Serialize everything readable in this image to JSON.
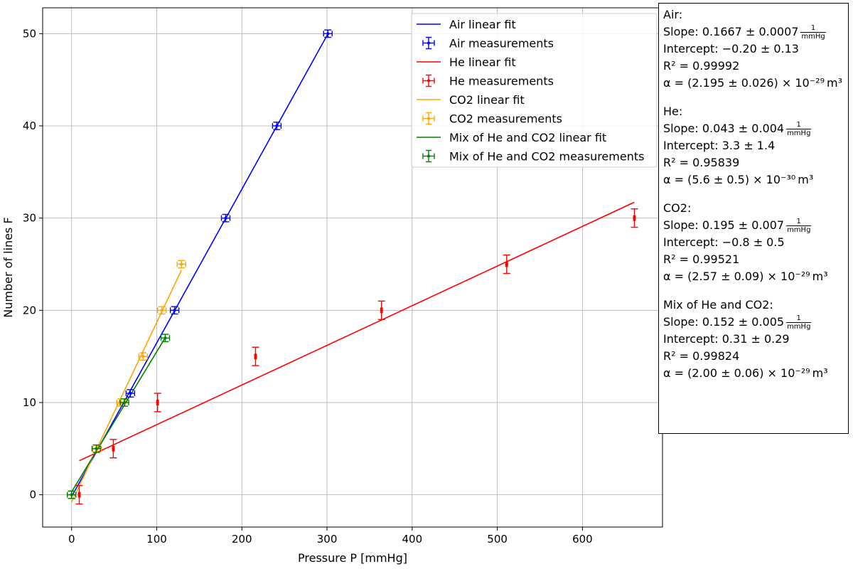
{
  "chart_data": {
    "type": "scatter",
    "xlabel": "Pressure P [mmHg]",
    "ylabel": "Number of lines F",
    "xlim": [
      -34,
      694
    ],
    "ylim": [
      -3.5,
      52.8
    ],
    "xticks": [
      "0",
      "100",
      "200",
      "300",
      "400",
      "500",
      "600"
    ],
    "xtick_values": [
      0,
      100,
      200,
      300,
      400,
      500,
      600
    ],
    "yticks": [
      "0",
      "10",
      "20",
      "30",
      "40",
      "50"
    ],
    "ytick_values": [
      0,
      10,
      20,
      30,
      40,
      50
    ],
    "grid": true,
    "legend_position": "top-right",
    "series": [
      {
        "key": "air",
        "color": "#0000ff",
        "fit_name": "Air linear fit",
        "meas_name": "Air measurements",
        "points": [
          [
            0,
            0
          ],
          [
            69,
            11
          ],
          [
            121,
            20
          ],
          [
            181,
            30
          ],
          [
            241,
            40
          ],
          [
            301,
            50
          ]
        ],
        "xerr": 5,
        "yerr": 0.4,
        "fit": {
          "slope": 0.1667,
          "intercept": -0.2,
          "x_range": [
            0,
            301
          ]
        }
      },
      {
        "key": "he",
        "color": "#ff0000",
        "fit_name": "He linear fit",
        "meas_name": "He measurements",
        "points": [
          [
            9,
            0
          ],
          [
            49,
            5
          ],
          [
            101,
            10
          ],
          [
            216,
            15
          ],
          [
            364,
            20
          ],
          [
            511,
            25
          ],
          [
            661,
            30
          ]
        ],
        "xerr": 1,
        "yerr": 1,
        "fit": {
          "slope": 0.043,
          "intercept": 3.3,
          "x_range": [
            9,
            661
          ]
        }
      },
      {
        "key": "co2",
        "color": "#ffa500",
        "fit_name": "CO2 linear fit",
        "meas_name": "CO2 measurements",
        "points": [
          [
            0,
            0
          ],
          [
            30,
            5
          ],
          [
            58,
            10
          ],
          [
            84,
            15
          ],
          [
            106,
            20
          ],
          [
            129,
            25
          ]
        ],
        "xerr": 5,
        "yerr": 0.4,
        "fit": {
          "slope": 0.195,
          "intercept": -0.8,
          "x_range": [
            0,
            129
          ]
        }
      },
      {
        "key": "mix",
        "color": "#008000",
        "fit_name": "Mix of He and CO2 linear fit",
        "meas_name": "Mix of He and CO2 measurements",
        "points": [
          [
            0,
            0
          ],
          [
            29,
            5
          ],
          [
            62,
            10
          ],
          [
            110,
            17
          ]
        ],
        "xerr": 5,
        "yerr": 0.4,
        "fit": {
          "slope": 0.152,
          "intercept": 0.31,
          "x_range": [
            0,
            110
          ]
        }
      }
    ]
  },
  "stats": {
    "air": {
      "title": "Air:",
      "slope_label": "Slope: ",
      "slope_value": "0.1667 ± 0.0007",
      "unit_num": "1",
      "unit_den": "mmHg",
      "intercept_label": "Intercept: ",
      "intercept_value": "−0.20 ± 0.13",
      "r2_label": "R² = ",
      "r2_value": "0.99992",
      "alpha_label": "α = ",
      "alpha_value": "(2.195 ± 0.026) × 10⁻²⁹",
      "alpha_unit": "m³"
    },
    "he": {
      "title": "He:",
      "slope_label": "Slope: ",
      "slope_value": "0.043 ± 0.004",
      "unit_num": "1",
      "unit_den": "mmHg",
      "intercept_label": "Intercept: ",
      "intercept_value": "3.3 ± 1.4",
      "r2_label": "R² = ",
      "r2_value": "0.95839",
      "alpha_label": "α = ",
      "alpha_value": "(5.6 ± 0.5) × 10⁻³⁰",
      "alpha_unit": "m³"
    },
    "co2": {
      "title": "CO2:",
      "slope_label": "Slope: ",
      "slope_value": "0.195 ± 0.007",
      "unit_num": "1",
      "unit_den": "mmHg",
      "intercept_label": "Intercept: ",
      "intercept_value": "−0.8 ± 0.5",
      "r2_label": "R² = ",
      "r2_value": "0.99521",
      "alpha_label": "α = ",
      "alpha_value": "(2.57 ± 0.09) × 10⁻²⁹",
      "alpha_unit": "m³"
    },
    "mix": {
      "title": "Mix of He and CO2:",
      "slope_label": "Slope: ",
      "slope_value": "0.152 ± 0.005",
      "unit_num": "1",
      "unit_den": "mmHg",
      "intercept_label": "Intercept: ",
      "intercept_value": "0.31 ± 0.29",
      "r2_label": "R² = ",
      "r2_value": "0.99824",
      "alpha_label": "α = ",
      "alpha_value": "(2.00 ± 0.06) × 10⁻²⁹",
      "alpha_unit": "m³"
    }
  }
}
